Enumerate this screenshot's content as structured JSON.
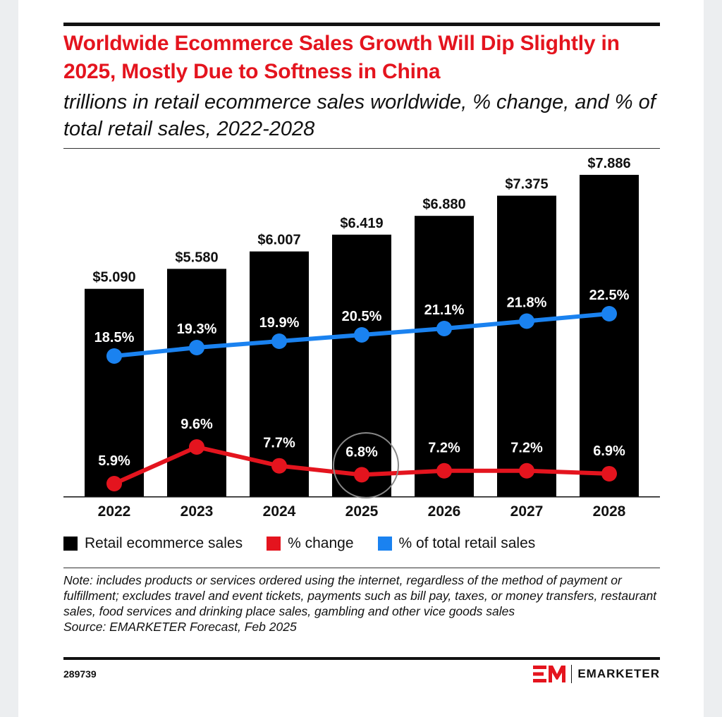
{
  "header": {
    "title": "Worldwide Ecommerce Sales Growth Will Dip Slightly in 2025, Mostly Due to Softness in China",
    "subtitle": "trillions in retail ecommerce sales worldwide, % change, and % of total retail sales, 2022-2028"
  },
  "legend": {
    "items": [
      {
        "label": "Retail ecommerce sales",
        "color": "#000000"
      },
      {
        "label": "% change",
        "color": "#e4141e"
      },
      {
        "label": "% of total retail sales",
        "color": "#1a82f0"
      }
    ]
  },
  "footer": {
    "note": "Note: includes products or services ordered using the internet, regardless of the method of payment or fulfillment; excludes travel and event tickets, payments such as bill pay, taxes, or money transfers, restaurant sales, food services and drinking place sales, gambling and other vice goods sales",
    "source": "Source: EMARKETER Forecast, Feb 2025",
    "chart_id": "289739",
    "brand": "EMARKETER",
    "logo_icon": "em-logo-icon"
  },
  "chart_data": {
    "type": "bar",
    "categories": [
      "2022",
      "2023",
      "2024",
      "2025",
      "2026",
      "2027",
      "2028"
    ],
    "series": [
      {
        "name": "Retail ecommerce sales",
        "type": "bar",
        "values": [
          5.09,
          5.58,
          6.007,
          6.419,
          6.88,
          7.375,
          7.886
        ],
        "labels": [
          "$5.090",
          "$5.580",
          "$6.007",
          "$6.419",
          "$6.880",
          "$7.375",
          "$7.886"
        ],
        "color": "#000000"
      },
      {
        "name": "% change",
        "type": "line",
        "values": [
          5.9,
          9.6,
          7.7,
          6.8,
          7.2,
          7.2,
          6.9
        ],
        "labels": [
          "5.9%",
          "9.6%",
          "7.7%",
          "6.8%",
          "7.2%",
          "7.2%",
          "6.9%"
        ],
        "color": "#e4141e"
      },
      {
        "name": "% of total retail sales",
        "type": "line",
        "values": [
          18.5,
          19.3,
          19.9,
          20.5,
          21.1,
          21.8,
          22.5
        ],
        "labels": [
          "18.5%",
          "19.3%",
          "19.9%",
          "20.5%",
          "21.1%",
          "21.8%",
          "22.5%"
        ],
        "color": "#1a82f0"
      }
    ],
    "highlight": {
      "category": "2025",
      "series": "% change",
      "shape": "circle",
      "color": "#888888"
    },
    "bar_ylim": [
      0,
      8.5
    ],
    "grid": false,
    "legend_position": "bottom"
  }
}
